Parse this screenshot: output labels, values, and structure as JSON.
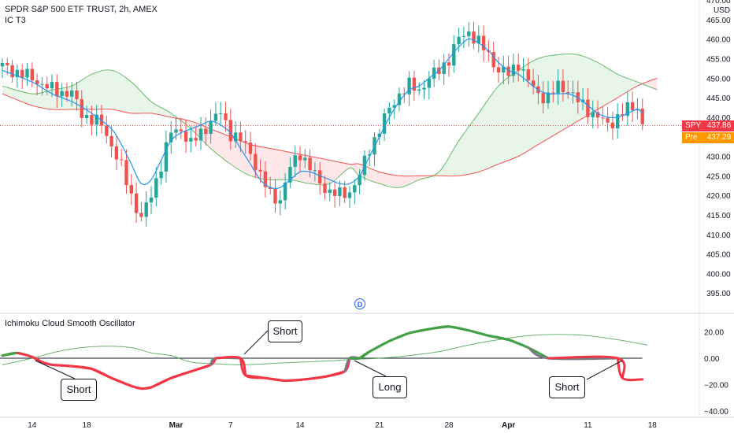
{
  "header": {
    "title": "SPDR S&P 500 ETF TRUST, 2h, AMEX",
    "indicator": "IC T3",
    "oscillator": "Ichimoku Cloud Smooth Oscillator",
    "currency": "USD"
  },
  "badges": {
    "last": {
      "label": "SPY",
      "value": "437.86"
    },
    "pre": {
      "label": "Pre",
      "value": "437.29"
    }
  },
  "marker": "D",
  "colors": {
    "bull": "#26a69a",
    "bear": "#ef5350",
    "signal": "#2196f3",
    "cloud_green": "#e8f5e9",
    "cloud_red": "#fde7e9",
    "senkou_a": "#66bb6a",
    "senkou_b": "#ef5350",
    "osc_pos": "#43a047",
    "osc_neg": "#f23645",
    "osc_zero": "#787b86"
  },
  "callouts": [
    "Short",
    "Short",
    "Long",
    "Short"
  ],
  "chart_data": [
    {
      "type": "candlestick",
      "title": "SPDR S&P 500 ETF TRUST, 2h, AMEX",
      "ylim": [
        390,
        470
      ],
      "y_ticks": [
        "470.00",
        "465.00",
        "460.00",
        "455.00",
        "450.00",
        "445.00",
        "440.00",
        "435.00",
        "430.00",
        "425.00",
        "420.00",
        "415.00",
        "410.00",
        "405.00",
        "400.00",
        "395.00"
      ],
      "x_ticks": [
        "14",
        "18",
        "Mar",
        "7",
        "14",
        "21",
        "28",
        "Apr",
        "11",
        "18"
      ],
      "last_price": 437.86,
      "close_path": [
        [
          0,
          453
        ],
        [
          6,
          450
        ],
        [
          10,
          447
        ],
        [
          14,
          446
        ],
        [
          16,
          441
        ],
        [
          20,
          438
        ],
        [
          22,
          433
        ],
        [
          24,
          427
        ],
        [
          26,
          420
        ],
        [
          28,
          414
        ],
        [
          30,
          420
        ],
        [
          32,
          428
        ],
        [
          34,
          436
        ],
        [
          36,
          437
        ],
        [
          38,
          433
        ],
        [
          40,
          436
        ],
        [
          42,
          439
        ],
        [
          44,
          441
        ],
        [
          46,
          436
        ],
        [
          48,
          434
        ],
        [
          50,
          431
        ],
        [
          52,
          425
        ],
        [
          54,
          420
        ],
        [
          56,
          419
        ],
        [
          58,
          427
        ],
        [
          60,
          431
        ],
        [
          62,
          427
        ],
        [
          64,
          423
        ],
        [
          66,
          421
        ],
        [
          68,
          420
        ],
        [
          70,
          421
        ],
        [
          72,
          425
        ],
        [
          74,
          432
        ],
        [
          76,
          437
        ],
        [
          78,
          442
        ],
        [
          80,
          446
        ],
        [
          82,
          448
        ],
        [
          84,
          447
        ],
        [
          86,
          450
        ],
        [
          88,
          452
        ],
        [
          90,
          455
        ],
        [
          92,
          460
        ],
        [
          94,
          462
        ],
        [
          96,
          459
        ],
        [
          98,
          456
        ],
        [
          100,
          452
        ],
        [
          102,
          451
        ],
        [
          104,
          454
        ],
        [
          106,
          449
        ],
        [
          108,
          446
        ],
        [
          110,
          445
        ],
        [
          112,
          448
        ],
        [
          114,
          447
        ],
        [
          116,
          444
        ],
        [
          118,
          442
        ],
        [
          120,
          440
        ],
        [
          122,
          438
        ],
        [
          124,
          440
        ],
        [
          126,
          442
        ],
        [
          128,
          443
        ],
        [
          129,
          438
        ]
      ],
      "series": [
        {
          "name": "IC T3",
          "values_path": [
            [
              0,
              452
            ],
            [
              6,
              449
            ],
            [
              10,
              446
            ],
            [
              14,
              444
            ],
            [
              18,
              441
            ],
            [
              22,
              437
            ],
            [
              24,
              433
            ],
            [
              26,
              428
            ],
            [
              28,
              423
            ],
            [
              30,
              424
            ],
            [
              32,
              429
            ],
            [
              34,
              434
            ],
            [
              36,
              436
            ],
            [
              38,
              437
            ],
            [
              40,
              438
            ],
            [
              42,
              439
            ],
            [
              44,
              438
            ],
            [
              46,
              436
            ],
            [
              48,
              432
            ],
            [
              50,
              428
            ],
            [
              52,
              424
            ],
            [
              54,
              422
            ],
            [
              56,
              422
            ],
            [
              58,
              424
            ],
            [
              60,
              426
            ],
            [
              62,
              426
            ],
            [
              64,
              425
            ],
            [
              66,
              424
            ],
            [
              68,
              423
            ],
            [
              70,
              423
            ],
            [
              72,
              425
            ],
            [
              74,
              430
            ],
            [
              76,
              435
            ],
            [
              78,
              440
            ],
            [
              80,
              444
            ],
            [
              82,
              447
            ],
            [
              84,
              448
            ],
            [
              86,
              450
            ],
            [
              88,
              452
            ],
            [
              90,
              455
            ],
            [
              92,
              458
            ],
            [
              94,
              460
            ],
            [
              96,
              459
            ],
            [
              98,
              457
            ],
            [
              100,
              454
            ],
            [
              102,
              452
            ],
            [
              104,
              451
            ],
            [
              106,
              449
            ],
            [
              108,
              447
            ],
            [
              110,
              446
            ],
            [
              112,
              446
            ],
            [
              114,
              446
            ],
            [
              116,
              445
            ],
            [
              118,
              443
            ],
            [
              120,
              441
            ],
            [
              122,
              440
            ],
            [
              124,
              440
            ],
            [
              126,
              441
            ],
            [
              128,
              442
            ],
            [
              129,
              441
            ]
          ]
        },
        {
          "name": "",
          "values_path": [
            [
              0,
              448
            ],
            [
              6,
              446
            ],
            [
              10,
              447
            ],
            [
              14,
              448
            ],
            [
              18,
              451
            ],
            [
              22,
              452
            ],
            [
              26,
              449
            ],
            [
              30,
              444
            ],
            [
              34,
              441
            ],
            [
              38,
              437
            ],
            [
              42,
              432
            ],
            [
              46,
              428
            ],
            [
              50,
              425
            ],
            [
              54,
              424
            ],
            [
              58,
              424
            ],
            [
              62,
              423
            ],
            [
              66,
              423
            ],
            [
              70,
              427
            ],
            [
              72,
              425
            ],
            [
              76,
              423
            ],
            [
              80,
              422
            ],
            [
              84,
              424
            ],
            [
              88,
              426
            ],
            [
              92,
              434
            ],
            [
              96,
              441
            ],
            [
              100,
              448
            ],
            [
              104,
              452
            ],
            [
              108,
              455
            ],
            [
              112,
              456
            ],
            [
              116,
              456
            ],
            [
              120,
              454
            ],
            [
              124,
              451
            ],
            [
              128,
              449
            ],
            [
              132,
              447
            ]
          ]
        },
        {
          "name": "",
          "values_path": [
            [
              0,
              446
            ],
            [
              6,
              443
            ],
            [
              10,
              442
            ],
            [
              14,
              442
            ],
            [
              18,
              442
            ],
            [
              22,
              442
            ],
            [
              26,
              441
            ],
            [
              30,
              441
            ],
            [
              34,
              440
            ],
            [
              38,
              439
            ],
            [
              42,
              437
            ],
            [
              46,
              435
            ],
            [
              50,
              433
            ],
            [
              54,
              432
            ],
            [
              58,
              431
            ],
            [
              62,
              430
            ],
            [
              66,
              429
            ],
            [
              70,
              428
            ],
            [
              72,
              428
            ],
            [
              76,
              426
            ],
            [
              80,
              425
            ],
            [
              84,
              425
            ],
            [
              88,
              425
            ],
            [
              92,
              425
            ],
            [
              96,
              426
            ],
            [
              100,
              428
            ],
            [
              104,
              430
            ],
            [
              108,
              433
            ],
            [
              112,
              436
            ],
            [
              116,
              439
            ],
            [
              120,
              442
            ],
            [
              124,
              445
            ],
            [
              128,
              448
            ],
            [
              132,
              450
            ]
          ]
        }
      ]
    },
    {
      "type": "line",
      "title": "Ichimoku Cloud Smooth Oscillator",
      "ylim": [
        -40,
        30
      ],
      "y_ticks": [
        "20.00",
        "0.00",
        "−20.00",
        "−40.00"
      ],
      "series": [
        {
          "name": "",
          "values_path": [
            [
              0,
              2
            ],
            [
              3,
              4
            ],
            [
              6,
              1
            ],
            [
              8,
              -3
            ],
            [
              10,
              -5
            ],
            [
              14,
              -6
            ],
            [
              18,
              -8
            ],
            [
              22,
              -15
            ],
            [
              26,
              -21
            ],
            [
              28,
              -23
            ],
            [
              30,
              -22
            ],
            [
              34,
              -15
            ],
            [
              38,
              -10
            ],
            [
              42,
              -5
            ],
            [
              43,
              0
            ],
            [
              48,
              0
            ],
            [
              49,
              -13
            ],
            [
              53,
              -15
            ],
            [
              57,
              -17
            ],
            [
              61,
              -16
            ],
            [
              65,
              -14
            ],
            [
              69,
              -10
            ],
            [
              70,
              0
            ],
            [
              72,
              0
            ],
            [
              74,
              5
            ],
            [
              78,
              13
            ],
            [
              82,
              19
            ],
            [
              86,
              22
            ],
            [
              90,
              24
            ],
            [
              94,
              21
            ],
            [
              98,
              17
            ],
            [
              102,
              14
            ],
            [
              106,
              8
            ],
            [
              110,
              0
            ],
            [
              124,
              0
            ],
            [
              125,
              -15
            ],
            [
              129,
              -16
            ]
          ]
        },
        {
          "name": "",
          "values_path": [
            [
              0,
              -5
            ],
            [
              6,
              0
            ],
            [
              10,
              4
            ],
            [
              14,
              7
            ],
            [
              20,
              9
            ],
            [
              26,
              8
            ],
            [
              30,
              4
            ],
            [
              34,
              2
            ],
            [
              38,
              -3
            ],
            [
              42,
              -4
            ],
            [
              48,
              -5
            ],
            [
              54,
              -4
            ],
            [
              60,
              -3
            ],
            [
              66,
              -2
            ],
            [
              70,
              -1
            ],
            [
              76,
              0
            ],
            [
              82,
              2
            ],
            [
              88,
              5
            ],
            [
              94,
              10
            ],
            [
              100,
              14
            ],
            [
              106,
              17
            ],
            [
              112,
              18
            ],
            [
              118,
              17
            ],
            [
              124,
              14
            ],
            [
              130,
              10
            ]
          ]
        }
      ]
    }
  ]
}
